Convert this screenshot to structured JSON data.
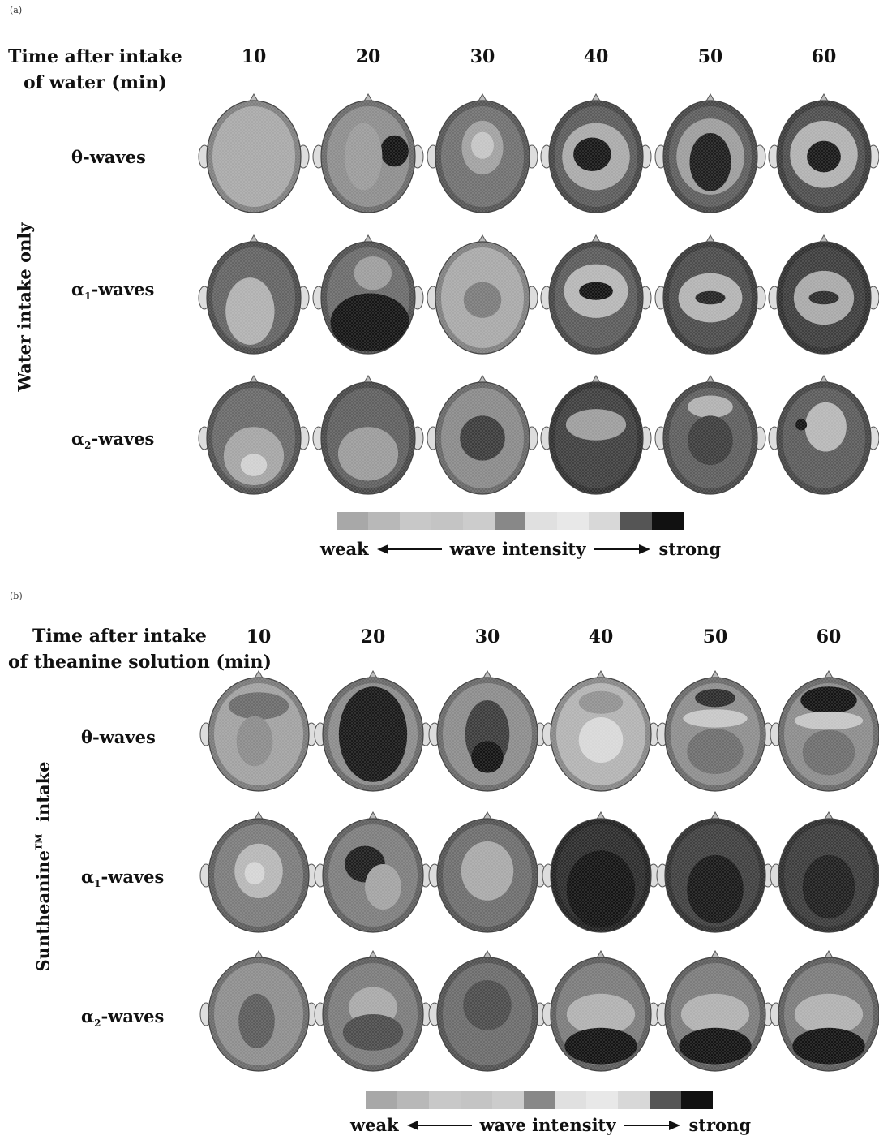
{
  "panel_a": {
    "panel_label": "(a)",
    "time_label_line1": "Time after intake",
    "time_label_line2": "of water (min)",
    "times": [
      "10",
      "20",
      "30",
      "40",
      "50",
      "60"
    ],
    "group_label": "Water intake only",
    "wave_labels": [
      {
        "prefix": "θ-waves",
        "sub": ""
      },
      {
        "prefix": "α",
        "sub": "1",
        "suffix": "-waves"
      },
      {
        "prefix": "α",
        "sub": "2",
        "suffix": "-waves"
      }
    ],
    "legend": {
      "weak": "weak",
      "middle": "wave intensity",
      "strong": "strong"
    },
    "maps": [
      [
        {
          "bg": "#a8a8a8",
          "blobs": []
        },
        {
          "bg": "#8c8c8c",
          "blobs": [
            [
              "#111",
              0.78,
              0.45,
              0.15,
              0.14
            ],
            [
              "#9a9a9a",
              0.45,
              0.5,
              0.2,
              0.3
            ]
          ]
        },
        {
          "bg": "#6f6f6f",
          "blobs": [
            [
              "#a0a0a0",
              0.5,
              0.42,
              0.22,
              0.24
            ],
            [
              "#c4c4c4",
              0.5,
              0.4,
              0.12,
              0.12
            ]
          ]
        },
        {
          "bg": "#5a5a5a",
          "blobs": [
            [
              "#a9a9a9",
              0.5,
              0.5,
              0.36,
              0.3
            ],
            [
              "#151515",
              0.46,
              0.48,
              0.2,
              0.15
            ]
          ]
        },
        {
          "bg": "#5c5c5c",
          "blobs": [
            [
              "#9c9c9c",
              0.5,
              0.5,
              0.36,
              0.34
            ],
            [
              "#1b1b1b",
              0.5,
              0.55,
              0.22,
              0.26
            ]
          ]
        },
        {
          "bg": "#4c4c4c",
          "blobs": [
            [
              "#b0b0b0",
              0.5,
              0.48,
              0.36,
              0.3
            ],
            [
              "#161616",
              0.5,
              0.5,
              0.18,
              0.14
            ]
          ]
        }
      ],
      [
        {
          "bg": "#626262",
          "blobs": [
            [
              "#b0b0b0",
              0.46,
              0.62,
              0.26,
              0.3
            ]
          ]
        },
        {
          "bg": "#6a6a6a",
          "blobs": [
            [
              "#121212",
              0.52,
              0.72,
              0.42,
              0.26
            ],
            [
              "#9c9c9c",
              0.55,
              0.28,
              0.2,
              0.15
            ]
          ]
        },
        {
          "bg": "#a8a8a8",
          "blobs": [
            [
              "#7a7a7a",
              0.5,
              0.52,
              0.2,
              0.16
            ]
          ]
        },
        {
          "bg": "#5a5a5a",
          "blobs": [
            [
              "#b5b5b5",
              0.5,
              0.44,
              0.34,
              0.24
            ],
            [
              "#111",
              0.5,
              0.44,
              0.18,
              0.08
            ]
          ]
        },
        {
          "bg": "#4a4a4a",
          "blobs": [
            [
              "#b2b2b2",
              0.5,
              0.5,
              0.34,
              0.22
            ],
            [
              "#222",
              0.5,
              0.5,
              0.16,
              0.06
            ]
          ]
        },
        {
          "bg": "#3c3c3c",
          "blobs": [
            [
              "#a8a8a8",
              0.5,
              0.5,
              0.32,
              0.24
            ],
            [
              "#2a2a2a",
              0.5,
              0.5,
              0.16,
              0.06
            ]
          ]
        }
      ],
      [
        {
          "bg": "#686868",
          "blobs": [
            [
              "#a4a4a4",
              0.5,
              0.66,
              0.32,
              0.26
            ],
            [
              "#d0d0d0",
              0.5,
              0.74,
              0.14,
              0.1
            ]
          ]
        },
        {
          "bg": "#5e5e5e",
          "blobs": [
            [
              "#9a9a9a",
              0.5,
              0.64,
              0.32,
              0.24
            ]
          ]
        },
        {
          "bg": "#888888",
          "blobs": [
            [
              "#3a3a3a",
              0.5,
              0.5,
              0.24,
              0.2
            ]
          ]
        },
        {
          "bg": "#3e3e3e",
          "blobs": [
            [
              "#9c9c9c",
              0.5,
              0.38,
              0.32,
              0.14
            ]
          ]
        },
        {
          "bg": "#5c5c5c",
          "blobs": [
            [
              "#b0b0b0",
              0.5,
              0.22,
              0.24,
              0.1
            ],
            [
              "#3c3c3c",
              0.5,
              0.52,
              0.24,
              0.22
            ]
          ]
        },
        {
          "bg": "#5a5a5a",
          "blobs": [
            [
              "#b6b6b6",
              0.52,
              0.4,
              0.22,
              0.22
            ],
            [
              "#111",
              0.26,
              0.38,
              0.06,
              0.05
            ]
          ]
        }
      ]
    ]
  },
  "panel_b": {
    "panel_label": "(b)",
    "time_label_line1": "Time after intake",
    "time_label_line2": "of theanine solution (min)",
    "times": [
      "10",
      "20",
      "30",
      "40",
      "50",
      "60"
    ],
    "group_label": "Suntheanine",
    "group_label_sup": "TM",
    "group_label_suffix": "intake",
    "wave_labels": [
      {
        "prefix": "θ-waves",
        "sub": ""
      },
      {
        "prefix": "α",
        "sub": "1",
        "suffix": "-waves"
      },
      {
        "prefix": "α",
        "sub": "2",
        "suffix": "-waves"
      }
    ],
    "legend": {
      "weak": "weak",
      "middle": "wave intensity",
      "strong": "strong"
    },
    "maps": [
      [
        {
          "bg": "#a0a0a0",
          "blobs": [
            [
              "#6a6a6a",
              0.5,
              0.25,
              0.3,
              0.12
            ],
            [
              "#8a8a8a",
              0.46,
              0.56,
              0.18,
              0.22
            ]
          ]
        },
        {
          "bg": "#8a8a8a",
          "blobs": [
            [
              "#161616",
              0.5,
              0.5,
              0.34,
              0.42
            ]
          ]
        },
        {
          "bg": "#8a8a8a",
          "blobs": [
            [
              "#3a3a3a",
              0.5,
              0.5,
              0.22,
              0.3
            ],
            [
              "#111",
              0.5,
              0.7,
              0.16,
              0.14
            ]
          ]
        },
        {
          "bg": "#b2b2b2",
          "blobs": [
            [
              "#d8d8d8",
              0.5,
              0.55,
              0.22,
              0.2
            ],
            [
              "#909090",
              0.5,
              0.22,
              0.22,
              0.1
            ]
          ]
        },
        {
          "bg": "#8c8c8c",
          "blobs": [
            [
              "#2a2a2a",
              0.5,
              0.18,
              0.2,
              0.08
            ],
            [
              "#c6c6c6",
              0.5,
              0.36,
              0.32,
              0.08
            ],
            [
              "#6c6c6c",
              0.5,
              0.65,
              0.28,
              0.2
            ]
          ]
        },
        {
          "bg": "#8a8a8a",
          "blobs": [
            [
              "#111",
              0.5,
              0.2,
              0.28,
              0.12
            ],
            [
              "#c4c4c4",
              0.5,
              0.38,
              0.34,
              0.08
            ],
            [
              "#6c6c6c",
              0.5,
              0.66,
              0.26,
              0.2
            ]
          ]
        }
      ],
      [
        {
          "bg": "#7a7a7a",
          "blobs": [
            [
              "#b6b6b6",
              0.5,
              0.46,
              0.24,
              0.24
            ],
            [
              "#d4d4d4",
              0.46,
              0.48,
              0.1,
              0.1
            ]
          ]
        },
        {
          "bg": "#7c7c7c",
          "blobs": [
            [
              "#1b1b1b",
              0.42,
              0.4,
              0.2,
              0.16
            ],
            [
              "#a2a2a2",
              0.6,
              0.6,
              0.18,
              0.2
            ]
          ]
        },
        {
          "bg": "#6c6c6c",
          "blobs": [
            [
              "#a8a8a8",
              0.5,
              0.46,
              0.26,
              0.26
            ]
          ]
        },
        {
          "bg": "#2a2a2a",
          "blobs": [
            [
              "#111",
              0.5,
              0.62,
              0.34,
              0.34
            ]
          ]
        },
        {
          "bg": "#3e3e3e",
          "blobs": [
            [
              "#161616",
              0.5,
              0.62,
              0.28,
              0.3
            ]
          ]
        },
        {
          "bg": "#3a3a3a",
          "blobs": [
            [
              "#1d1d1d",
              0.5,
              0.6,
              0.26,
              0.28
            ]
          ]
        }
      ],
      [
        {
          "bg": "#8c8c8c",
          "blobs": [
            [
              "#5a5a5a",
              0.48,
              0.56,
              0.18,
              0.24
            ]
          ]
        },
        {
          "bg": "#7a7a7a",
          "blobs": [
            [
              "#a8a8a8",
              0.5,
              0.44,
              0.24,
              0.18
            ],
            [
              "#4a4a4a",
              0.5,
              0.66,
              0.3,
              0.16
            ]
          ]
        },
        {
          "bg": "#6a6a6a",
          "blobs": [
            [
              "#4a4a4a",
              0.5,
              0.42,
              0.24,
              0.22
            ]
          ]
        },
        {
          "bg": "#7a7a7a",
          "blobs": [
            [
              "#b0b0b0",
              0.5,
              0.5,
              0.34,
              0.18
            ],
            [
              "#111",
              0.5,
              0.78,
              0.36,
              0.16
            ]
          ]
        },
        {
          "bg": "#7a7a7a",
          "blobs": [
            [
              "#b0b0b0",
              0.5,
              0.5,
              0.34,
              0.18
            ],
            [
              "#111",
              0.5,
              0.78,
              0.36,
              0.16
            ]
          ]
        },
        {
          "bg": "#7a7a7a",
          "blobs": [
            [
              "#b0b0b0",
              0.5,
              0.5,
              0.34,
              0.18
            ],
            [
              "#111",
              0.5,
              0.78,
              0.36,
              0.16
            ]
          ]
        }
      ]
    ]
  },
  "legend_colors": [
    "#a8a8a8",
    "#b8b8b8",
    "#c8c8c8",
    "#c4c4c4",
    "#cccccc",
    "#888888",
    "#e0e0e0",
    "#e8e8e8",
    "#d8d8d8",
    "#555555",
    "#111111"
  ]
}
